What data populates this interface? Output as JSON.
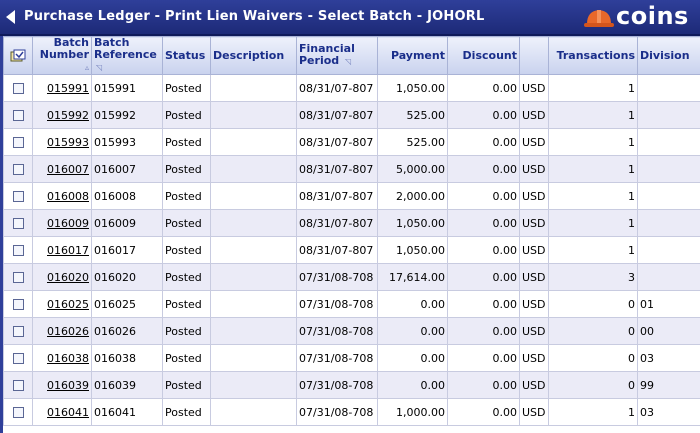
{
  "header": {
    "title": "Purchase Ledger - Print Lien Waivers - Select Batch - JOHORL",
    "logo_text": "coins"
  },
  "columns": {
    "batch_number_line1": "Batch",
    "batch_number_line2": "Number",
    "batch_reference_line1": "Batch",
    "batch_reference_line2": "Reference",
    "status": "Status",
    "description": "Description",
    "financial_period_line1": "Financial",
    "financial_period_line2": "Period",
    "payment": "Payment",
    "discount": "Discount",
    "transactions": "Transactions",
    "division": "Division"
  },
  "colors": {
    "title_bar": "#2f3f9a",
    "header_text": "#1a2e8a",
    "alt_row": "#ebebf7",
    "logo_hat": "#e8682a"
  },
  "rows": [
    {
      "batch": "015991",
      "ref": "015991",
      "status": "Posted",
      "desc": "",
      "period": "08/31/07-807",
      "payment": "1,050.00",
      "discount": "0.00",
      "currency": "USD",
      "transactions": "1",
      "division": ""
    },
    {
      "batch": "015992",
      "ref": "015992",
      "status": "Posted",
      "desc": "",
      "period": "08/31/07-807",
      "payment": "525.00",
      "discount": "0.00",
      "currency": "USD",
      "transactions": "1",
      "division": ""
    },
    {
      "batch": "015993",
      "ref": "015993",
      "status": "Posted",
      "desc": "",
      "period": "08/31/07-807",
      "payment": "525.00",
      "discount": "0.00",
      "currency": "USD",
      "transactions": "1",
      "division": ""
    },
    {
      "batch": "016007",
      "ref": "016007",
      "status": "Posted",
      "desc": "",
      "period": "08/31/07-807",
      "payment": "5,000.00",
      "discount": "0.00",
      "currency": "USD",
      "transactions": "1",
      "division": ""
    },
    {
      "batch": "016008",
      "ref": "016008",
      "status": "Posted",
      "desc": "",
      "period": "08/31/07-807",
      "payment": "2,000.00",
      "discount": "0.00",
      "currency": "USD",
      "transactions": "1",
      "division": ""
    },
    {
      "batch": "016009",
      "ref": "016009",
      "status": "Posted",
      "desc": "",
      "period": "08/31/07-807",
      "payment": "1,050.00",
      "discount": "0.00",
      "currency": "USD",
      "transactions": "1",
      "division": ""
    },
    {
      "batch": "016017",
      "ref": "016017",
      "status": "Posted",
      "desc": "",
      "period": "08/31/07-807",
      "payment": "1,050.00",
      "discount": "0.00",
      "currency": "USD",
      "transactions": "1",
      "division": ""
    },
    {
      "batch": "016020",
      "ref": "016020",
      "status": "Posted",
      "desc": "",
      "period": "07/31/08-708",
      "payment": "17,614.00",
      "discount": "0.00",
      "currency": "USD",
      "transactions": "3",
      "division": ""
    },
    {
      "batch": "016025",
      "ref": "016025",
      "status": "Posted",
      "desc": "",
      "period": "07/31/08-708",
      "payment": "0.00",
      "discount": "0.00",
      "currency": "USD",
      "transactions": "0",
      "division": "01"
    },
    {
      "batch": "016026",
      "ref": "016026",
      "status": "Posted",
      "desc": "",
      "period": "07/31/08-708",
      "payment": "0.00",
      "discount": "0.00",
      "currency": "USD",
      "transactions": "0",
      "division": "00"
    },
    {
      "batch": "016038",
      "ref": "016038",
      "status": "Posted",
      "desc": "",
      "period": "07/31/08-708",
      "payment": "0.00",
      "discount": "0.00",
      "currency": "USD",
      "transactions": "0",
      "division": "03"
    },
    {
      "batch": "016039",
      "ref": "016039",
      "status": "Posted",
      "desc": "",
      "period": "07/31/08-708",
      "payment": "0.00",
      "discount": "0.00",
      "currency": "USD",
      "transactions": "0",
      "division": "99"
    },
    {
      "batch": "016041",
      "ref": "016041",
      "status": "Posted",
      "desc": "",
      "period": "07/31/08-708",
      "payment": "1,000.00",
      "discount": "0.00",
      "currency": "USD",
      "transactions": "1",
      "division": "03"
    }
  ]
}
